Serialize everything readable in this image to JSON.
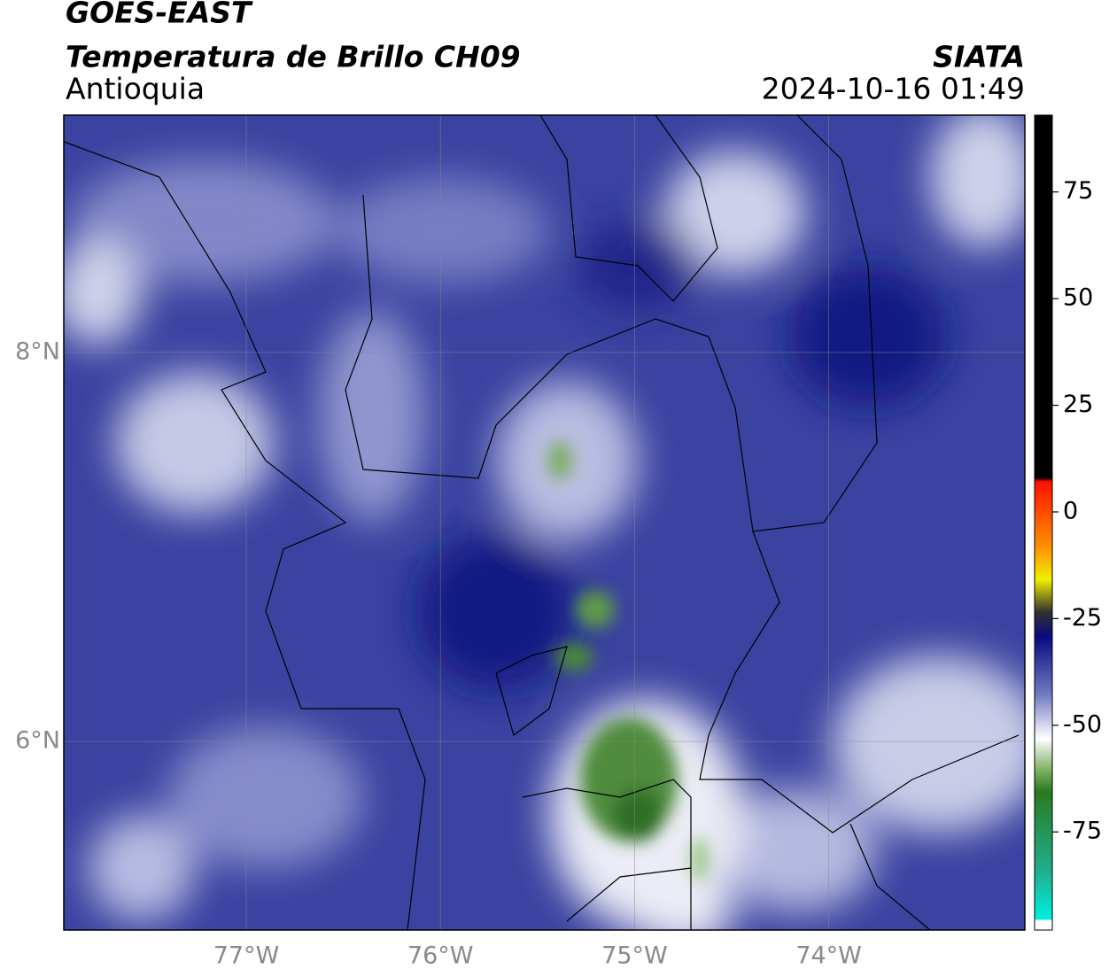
{
  "header": {
    "title": "GOES-EAST",
    "subtitle": "Temperatura de Brillo CH09",
    "region": "Antioquia",
    "source": "SIATA",
    "datetime": "2024-10-16 01:49"
  },
  "map": {
    "xlim": [
      -77.94,
      -72.99
    ],
    "ylim": [
      5.03,
      9.22
    ],
    "xticks": [
      {
        "value": -77,
        "label": "77°W"
      },
      {
        "value": -76,
        "label": "76°W"
      },
      {
        "value": -75,
        "label": "75°W"
      },
      {
        "value": -74,
        "label": "74°W"
      }
    ],
    "yticks": [
      {
        "value": 8,
        "label": "8°N"
      },
      {
        "value": 6,
        "label": "6°N"
      }
    ]
  },
  "colorbar": {
    "lim": [
      -98,
      93
    ],
    "ticks": [
      75,
      50,
      25,
      0,
      -25,
      -50,
      -75
    ]
  }
}
